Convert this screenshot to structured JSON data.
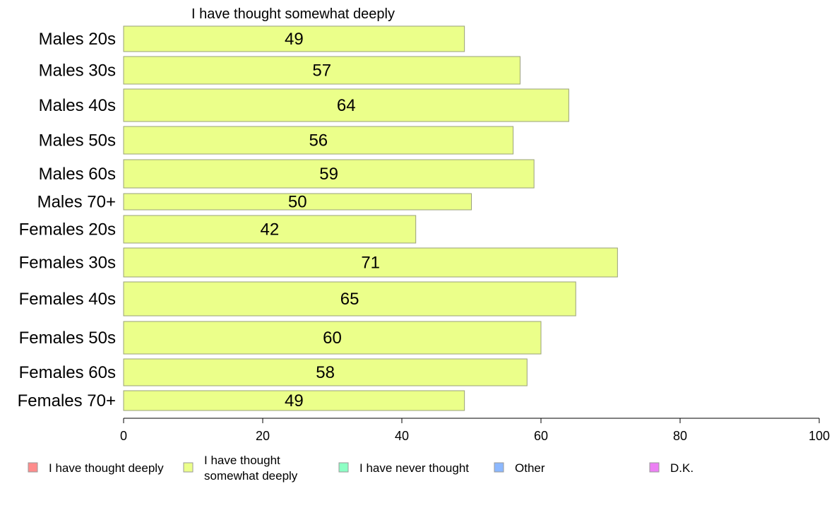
{
  "chart_data": {
    "type": "bar",
    "orientation": "horizontal",
    "title": "I have thought somewhat deeply",
    "categories": [
      "Males 20s",
      "Males 30s",
      "Males 40s",
      "Males 50s",
      "Males 60s",
      "Males 70+",
      "Females 20s",
      "Females 30s",
      "Females 40s",
      "Females 50s",
      "Females 60s",
      "Females 70+"
    ],
    "series": [
      {
        "name": "I have thought somewhat deeply",
        "color": "#ebff8a",
        "values": [
          49,
          57,
          64,
          56,
          59,
          50,
          42,
          71,
          65,
          60,
          58,
          49
        ]
      }
    ],
    "xlim": [
      0,
      100
    ],
    "xticks": [
      0,
      20,
      40,
      60,
      80,
      100
    ],
    "grid": false,
    "legend_position": "bottom",
    "legend": [
      {
        "label": "I have thought deeply",
        "color": "#ff8c8c"
      },
      {
        "label": "I have thought\nsomewhat deeply",
        "color": "#ebff8a"
      },
      {
        "label": "I have never thought",
        "color": "#8cffc4"
      },
      {
        "label": "Other",
        "color": "#8cb8ff"
      },
      {
        "label": "D.K.",
        "color": "#ec80f4"
      }
    ]
  }
}
